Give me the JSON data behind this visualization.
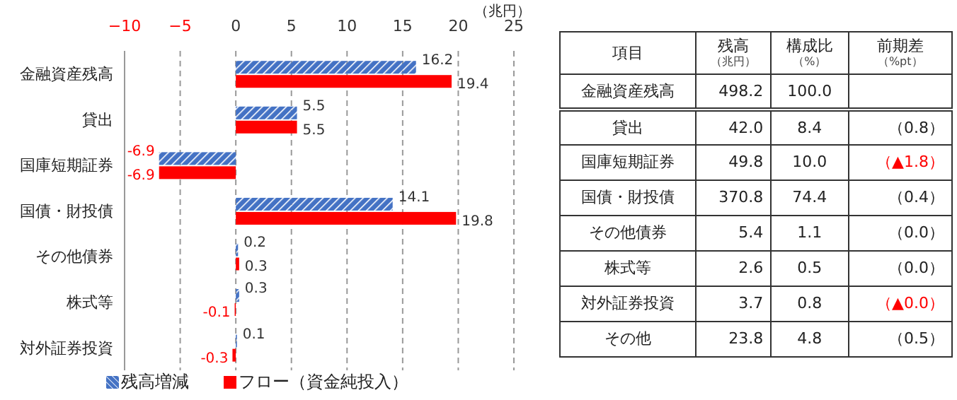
{
  "chart_data": [
    {
      "type": "bar",
      "orientation": "horizontal",
      "xlabel": "（兆円）",
      "categories": [
        "金融資産残高",
        "貸出",
        "国庫短期証券",
        "国債・財投債",
        "その他債券",
        "株式等",
        "対外証券投資"
      ],
      "series": [
        {
          "name": "残高増減",
          "color": "#4472c4",
          "values": [
            16.2,
            5.5,
            -6.9,
            14.1,
            0.2,
            0.3,
            0.1
          ]
        },
        {
          "name": "フロー（資金純投入）",
          "color": "#ff0000",
          "values": [
            19.4,
            5.5,
            -6.9,
            19.8,
            0.3,
            -0.1,
            -0.3
          ]
        }
      ],
      "xlim": [
        -10,
        25
      ],
      "xticks": [
        {
          "value": -10,
          "label": "−10"
        },
        {
          "value": -5,
          "label": "−5"
        },
        0,
        5,
        10,
        15,
        20,
        25
      ],
      "grid": "x",
      "data_labels": true,
      "legend": "bottom"
    },
    {
      "type": "other",
      "categories": [
        "項目",
        "残高（兆円）",
        "構成比（%）",
        "前期差（%pt）"
      ],
      "y_categories": [
        "金融資産残高",
        "貸出",
        "国庫短期証券",
        "国債・財投債",
        "その他債券",
        "株式等",
        "対外証券投資",
        "その他"
      ],
      "cell_labels": [
        [
          "498.2",
          "100.0",
          null
        ],
        [
          "42.0",
          "8.4",
          "（0.8）"
        ],
        [
          "49.8",
          "10.0",
          "（▲1.8）"
        ],
        [
          "370.8",
          "74.4",
          "（0.4）"
        ],
        [
          "5.4",
          "1.1",
          "（0.0）"
        ],
        [
          "2.6",
          "0.5",
          "（0.0）"
        ],
        [
          "3.7",
          "0.8",
          "（▲0.0）"
        ],
        [
          "23.8",
          "4.8",
          "（0.5）"
        ]
      ],
      "colors": [
        null,
        null,
        "#ff0000",
        null,
        null,
        null,
        "#ff0000",
        null
      ]
    }
  ]
}
